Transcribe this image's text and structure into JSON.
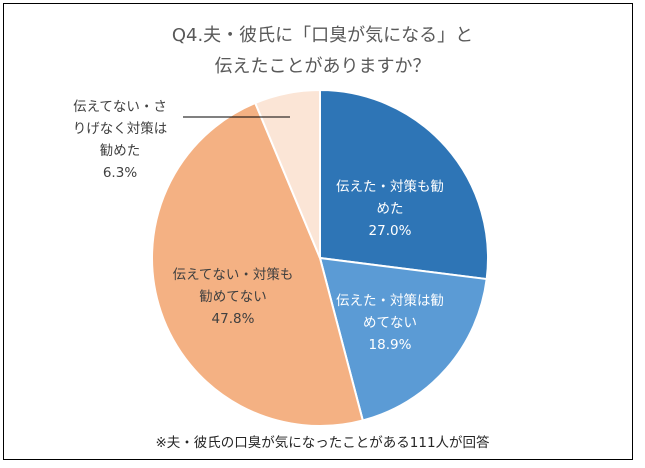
{
  "chart_data": {
    "type": "pie",
    "title_lines": [
      "Q4.夫・彼氏に「口臭が気になる」と",
      "伝えたことがありますか？"
    ],
    "categories": [
      "伝えた・対策も勧めた",
      "伝えた・対策は勧めてない",
      "伝えてない・対策も勧めてない",
      "伝えてない・さりげなく対策は勧めた"
    ],
    "values": [
      27.0,
      18.9,
      47.8,
      6.3
    ],
    "value_labels": [
      "27.0%",
      "18.9%",
      "47.8%",
      "6.3%"
    ],
    "colors": [
      "#2E75B6",
      "#5B9BD5",
      "#F4B183",
      "#FBE5D6"
    ],
    "start_angle": "12 o'clock",
    "direction": "clockwise",
    "footnote": "※夫・彼氏の口臭が気になったことがある111人が回答"
  }
}
